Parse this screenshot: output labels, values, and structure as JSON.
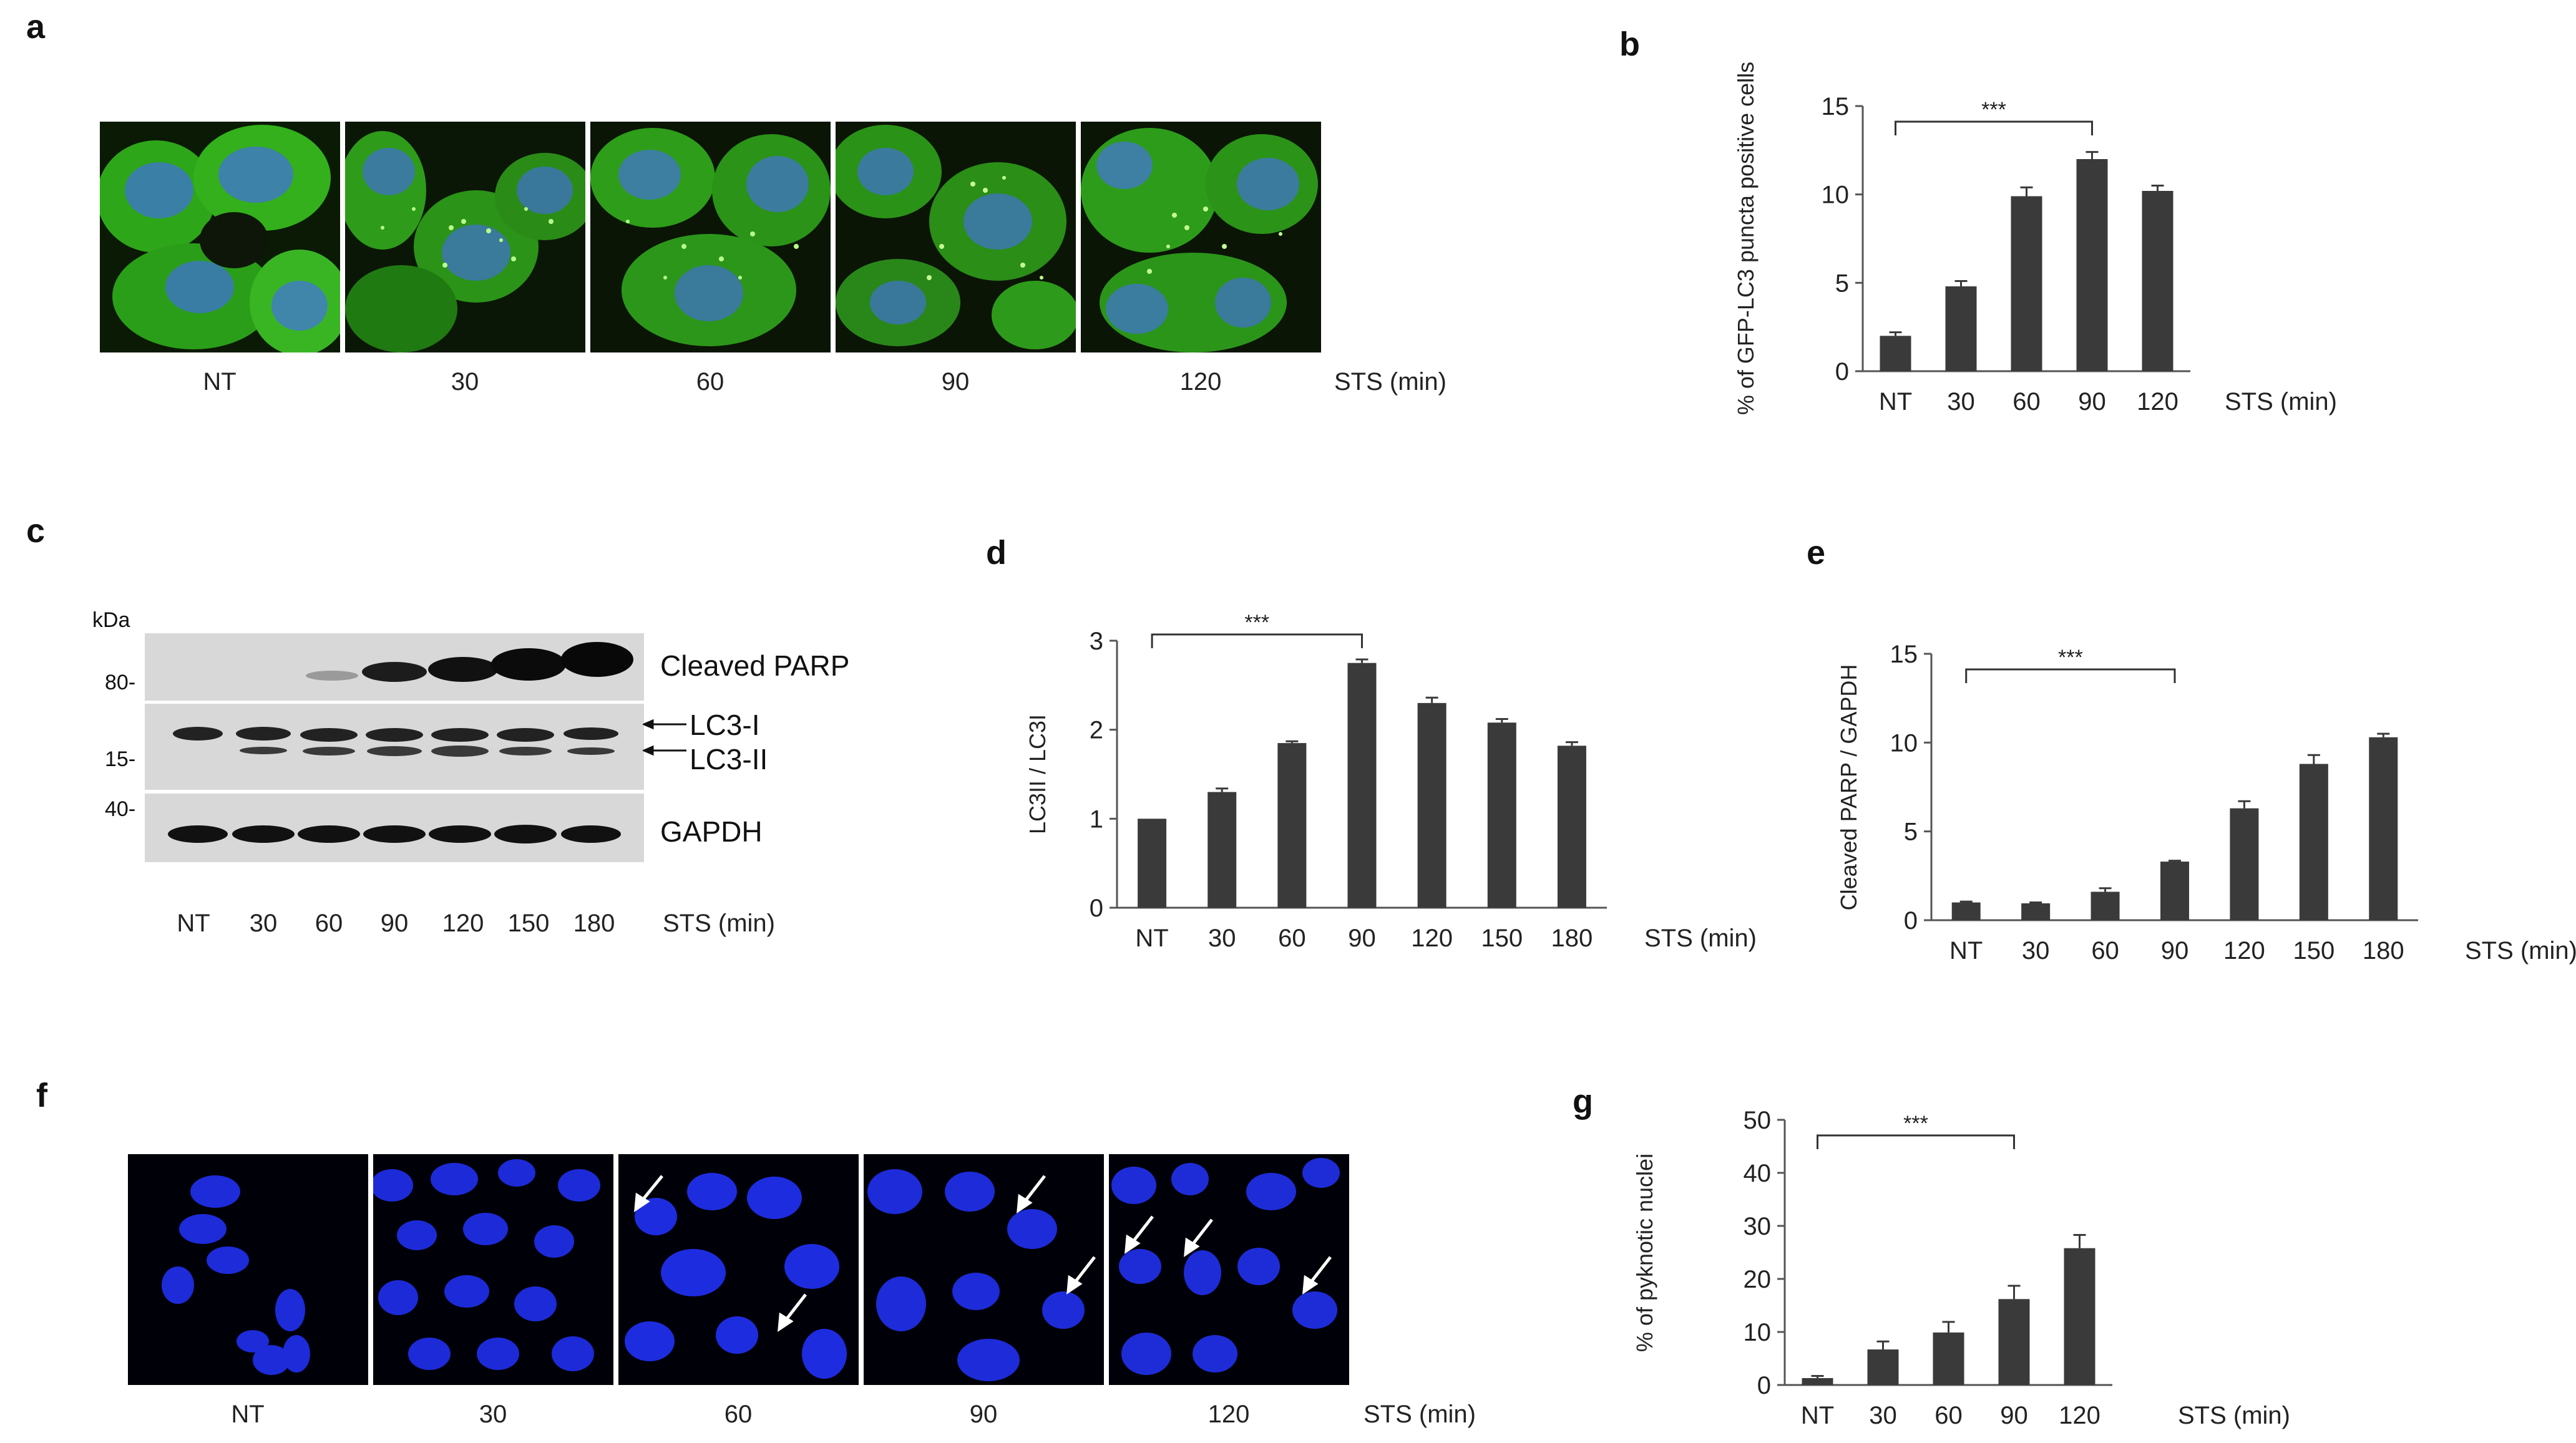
{
  "panels": {
    "a": {
      "letter": "a",
      "labels": [
        "NT",
        "30",
        "60",
        "90",
        "120"
      ],
      "unit_label": "STS (min)"
    },
    "c": {
      "letter": "c",
      "kda_title": "kDa",
      "markers": [
        "80-",
        "15-",
        "40-"
      ],
      "bands": [
        "Cleaved PARP",
        "LC3-I",
        "LC3-II",
        "GAPDH"
      ],
      "lane_labels": [
        "NT",
        "30",
        "60",
        "90",
        "120",
        "150",
        "180"
      ],
      "unit_label": "STS (min)"
    },
    "f": {
      "letter": "f",
      "labels": [
        "NT",
        "30",
        "60",
        "90",
        "120"
      ],
      "unit_label": "STS (min)"
    }
  },
  "chart_data": [
    {
      "panel": "b",
      "type": "bar",
      "categories": [
        "NT",
        "30",
        "60",
        "90",
        "120"
      ],
      "values": [
        2.0,
        4.8,
        9.9,
        12.0,
        10.2
      ],
      "errors": [
        0.2,
        0.3,
        0.5,
        0.4,
        0.3
      ],
      "ylabel": "% of GFP-LC3 puncta positive cells",
      "xunit": "STS (min)",
      "ylim": [
        0,
        15
      ],
      "yticks": [
        "0",
        "5",
        "10",
        "15"
      ],
      "significance": "***",
      "bracket": [
        "NT",
        "90"
      ]
    },
    {
      "panel": "d",
      "type": "bar",
      "categories": [
        "NT",
        "30",
        "60",
        "90",
        "120",
        "150",
        "180"
      ],
      "values": [
        1.0,
        1.3,
        1.85,
        2.75,
        2.3,
        2.08,
        1.82
      ],
      "errors": [
        0.0,
        0.04,
        0.02,
        0.04,
        0.06,
        0.04,
        0.04
      ],
      "ylabel": "LC3II / LC3I",
      "xunit": "STS (min)",
      "ylim": [
        0,
        3
      ],
      "yticks": [
        "0",
        "1",
        "2",
        "3"
      ],
      "significance": "***",
      "bracket": [
        "NT",
        "90"
      ]
    },
    {
      "panel": "e",
      "type": "bar",
      "categories": [
        "NT",
        "30",
        "60",
        "90",
        "120",
        "150",
        "180"
      ],
      "values": [
        1.0,
        0.95,
        1.6,
        3.3,
        6.3,
        8.8,
        10.3
      ],
      "errors": [
        0.05,
        0.05,
        0.2,
        0.05,
        0.4,
        0.5,
        0.2
      ],
      "ylabel": "Cleaved PARP / GAPDH",
      "xunit": "STS (min)",
      "ylim": [
        0,
        15
      ],
      "yticks": [
        "0",
        "5",
        "10",
        "15"
      ],
      "significance": "***",
      "bracket": [
        "NT",
        "90"
      ]
    },
    {
      "panel": "g",
      "type": "bar",
      "categories": [
        "NT",
        "30",
        "60",
        "90",
        "120"
      ],
      "values": [
        1.3,
        6.7,
        9.9,
        16.2,
        25.8
      ],
      "errors": [
        0.4,
        1.5,
        2.0,
        2.5,
        2.5
      ],
      "ylabel": "% of pyknotic nuclei",
      "xunit": "STS (min)",
      "ylim": [
        0,
        50
      ],
      "yticks": [
        "0",
        "10",
        "20",
        "30",
        "40",
        "50"
      ],
      "significance": "***",
      "bracket": [
        "NT",
        "90"
      ]
    }
  ]
}
